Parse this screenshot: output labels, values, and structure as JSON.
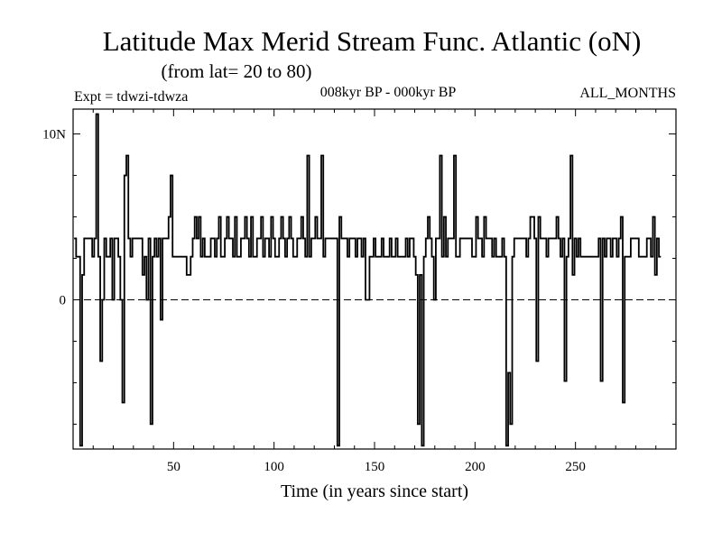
{
  "chart_data": {
    "type": "line",
    "title": "Latitude Max Merid Stream Func. Atlantic (oN)",
    "subtitle": "(from lat= 20 to 80)",
    "experiment": "Expt = tdwzi-tdwza",
    "period": "008kyr BP - 000kyr BP",
    "season": "ALL_MONTHS",
    "xlabel": "Time (in years since start)",
    "ylabel": "",
    "xlim": [
      0,
      300
    ],
    "ylim": [
      -9,
      11.5
    ],
    "x_ticks": [
      50,
      100,
      150,
      200,
      250
    ],
    "y_ticks": [
      {
        "value": 10,
        "label": "10N"
      },
      {
        "value": 0,
        "label": "0"
      }
    ],
    "zero_line": "dashed",
    "series": [
      {
        "x_start": 1,
        "x_step": 1,
        "values": [
          3.7,
          2.6,
          2.6,
          -8.8,
          1.5,
          3.7,
          3.7,
          3.7,
          3.7,
          2.6,
          3.7,
          11.2,
          2.6,
          -3.7,
          0,
          3.7,
          2.6,
          2.6,
          3.7,
          0,
          3.7,
          3.7,
          2.6,
          0,
          -6.2,
          7.5,
          8.7,
          3.7,
          2.6,
          3.7,
          3.7,
          3.7,
          3.7,
          3.7,
          1.5,
          2.6,
          0,
          3.7,
          -7.5,
          2.6,
          3.7,
          2.6,
          3.7,
          -1.2,
          3.7,
          3.7,
          3.7,
          5,
          7.5,
          2.6,
          2.6,
          2.6,
          2.6,
          2.6,
          2.6,
          2.6,
          1.5,
          1.5,
          2.6,
          3.7,
          5,
          3.7,
          5,
          2.6,
          3.7,
          2.6,
          2.6,
          2.6,
          3.7,
          3.7,
          2.6,
          3.7,
          5,
          2.6,
          2.6,
          3.7,
          5,
          3.7,
          3.7,
          2.6,
          5,
          2.6,
          2.6,
          3.7,
          3.7,
          5,
          3.7,
          2.6,
          5,
          2.6,
          2.6,
          3.7,
          3.7,
          5,
          2.6,
          3.7,
          3.7,
          2.6,
          5,
          3.7,
          2.6,
          2.6,
          3.7,
          5,
          3.7,
          2.6,
          3.7,
          5,
          3.7,
          2.6,
          2.6,
          3.7,
          3.7,
          5,
          3.7,
          2.6,
          8.7,
          2.6,
          3.7,
          3.7,
          5,
          3.7,
          3.7,
          8.7,
          2.6,
          3.7,
          3.7,
          3.7,
          3.7,
          3.7,
          3.7,
          -8.8,
          5,
          3.7,
          3.7,
          3.7,
          2.6,
          3.7,
          3.7,
          3.7,
          2.6,
          3.7,
          3.7,
          2.6,
          3.7,
          0,
          0,
          2.6,
          2.6,
          3.7,
          2.6,
          2.6,
          2.6,
          3.7,
          2.6,
          2.6,
          2.6,
          3.7,
          2.6,
          2.6,
          3.7,
          2.6,
          2.6,
          2.6,
          2.6,
          3.7,
          2.6,
          3.7,
          3.7,
          2.6,
          1.5,
          -7.5,
          1.5,
          -8.8,
          2.6,
          3.7,
          5,
          3.7,
          2.6,
          0,
          3.7,
          3.7,
          8.7,
          2.6,
          5,
          2.6,
          3.7,
          3.7,
          3.7,
          8.7,
          2.6,
          2.6,
          3.7,
          3.7,
          3.7,
          3.7,
          3.7,
          3.7,
          2.6,
          2.6,
          5,
          3.7,
          3.7,
          2.6,
          5,
          3.7,
          3.7,
          3.7,
          2.6,
          3.7,
          2.6,
          2.6,
          2.6,
          3.7,
          2.6,
          -8.8,
          -4.4,
          -7.5,
          2.6,
          3.7,
          3.7,
          3.7,
          3.7,
          3.7,
          3.7,
          2.6,
          3.7,
          5,
          5,
          3.7,
          -3.7,
          5,
          3.7,
          3.7,
          3.7,
          2.6,
          3.7,
          3.7,
          3.7,
          3.7,
          5,
          3.7,
          2.6,
          3.7,
          -4.9,
          2.6,
          3.7,
          8.7,
          1.5,
          3.7,
          2.6,
          3.7,
          2.6,
          2.6,
          2.6,
          2.6,
          2.6,
          2.6,
          2.6,
          2.6,
          2.6,
          3.7,
          -4.9,
          3.7,
          2.6,
          3.7,
          3.7,
          2.6,
          3.7,
          3.7,
          2.6,
          3.7,
          5,
          -6.2,
          2.6,
          2.6,
          2.6,
          3.7,
          3.7,
          3.7,
          3.7,
          2.6,
          2.6,
          2.6,
          2.6,
          3.7,
          3.7,
          2.6,
          5,
          1.5,
          3.7,
          2.6
        ]
      }
    ],
    "grid": false,
    "legend": "none"
  }
}
